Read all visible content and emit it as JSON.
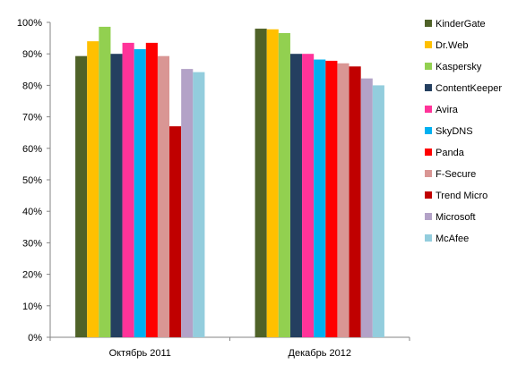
{
  "chart_data": {
    "type": "bar",
    "categories": [
      "Октябрь 2011",
      "Декабрь 2012"
    ],
    "ylim": [
      0,
      100
    ],
    "y_ticks": [
      "0%",
      "10%",
      "20%",
      "30%",
      "40%",
      "50%",
      "60%",
      "70%",
      "80%",
      "90%",
      "100%"
    ],
    "grid": false,
    "legend_position": "right",
    "series": [
      {
        "name": "KinderGate",
        "color": "#4f6228",
        "values": [
          89.3,
          98.0
        ]
      },
      {
        "name": "Dr.Web",
        "color": "#ffc000",
        "values": [
          94.0,
          97.8
        ]
      },
      {
        "name": "Kaspersky",
        "color": "#92d050",
        "values": [
          98.6,
          96.6
        ]
      },
      {
        "name": "ContentKeeper",
        "color": "#243f60",
        "values": [
          90.0,
          90.0
        ]
      },
      {
        "name": "Avira",
        "color": "#ff3399",
        "values": [
          93.5,
          90.0
        ]
      },
      {
        "name": "SkyDNS",
        "color": "#00b0f0",
        "values": [
          91.5,
          88.2
        ]
      },
      {
        "name": "Panda",
        "color": "#ff0000",
        "values": [
          93.5,
          87.8
        ]
      },
      {
        "name": "F-Secure",
        "color": "#d99694",
        "values": [
          89.3,
          87.0
        ]
      },
      {
        "name": "Trend Micro",
        "color": "#c00000",
        "values": [
          67.0,
          86.0
        ]
      },
      {
        "name": "Microsoft",
        "color": "#b3a2c7",
        "values": [
          85.2,
          82.2
        ]
      },
      {
        "name": "McAfee",
        "color": "#93cddd",
        "values": [
          84.2,
          80.0
        ]
      }
    ]
  }
}
